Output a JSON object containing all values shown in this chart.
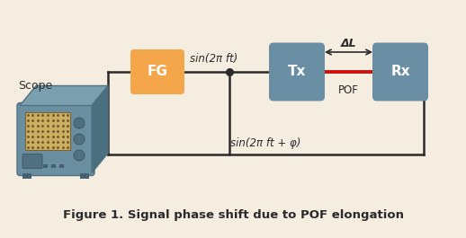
{
  "bg_color": "#f5ede0",
  "title": "Figure 1. Signal phase shift due to POF elongation",
  "title_fontsize": 9.5,
  "title_color": "#2a2a2a",
  "fg_box_color": "#f5a54a",
  "tx_rx_color": "#6a8fa5",
  "line_color": "#2a2a2a",
  "pof_color": "#cc1010",
  "fg_label": "FG",
  "tx_label": "Tx",
  "rx_label": "Rx",
  "scope_label": "Scope",
  "sin_top": "sin(2π ft)",
  "sin_bottom": "sin(2π ft + φ)",
  "delta_l": "ΔL",
  "pof_label": "POF",
  "scope_body_color": "#6a8fa0",
  "scope_side_color": "#4a7080",
  "scope_top_color": "#7aA0b0",
  "scope_screen_color": "#c8b060",
  "scope_screen_dark": "#3a5a30"
}
